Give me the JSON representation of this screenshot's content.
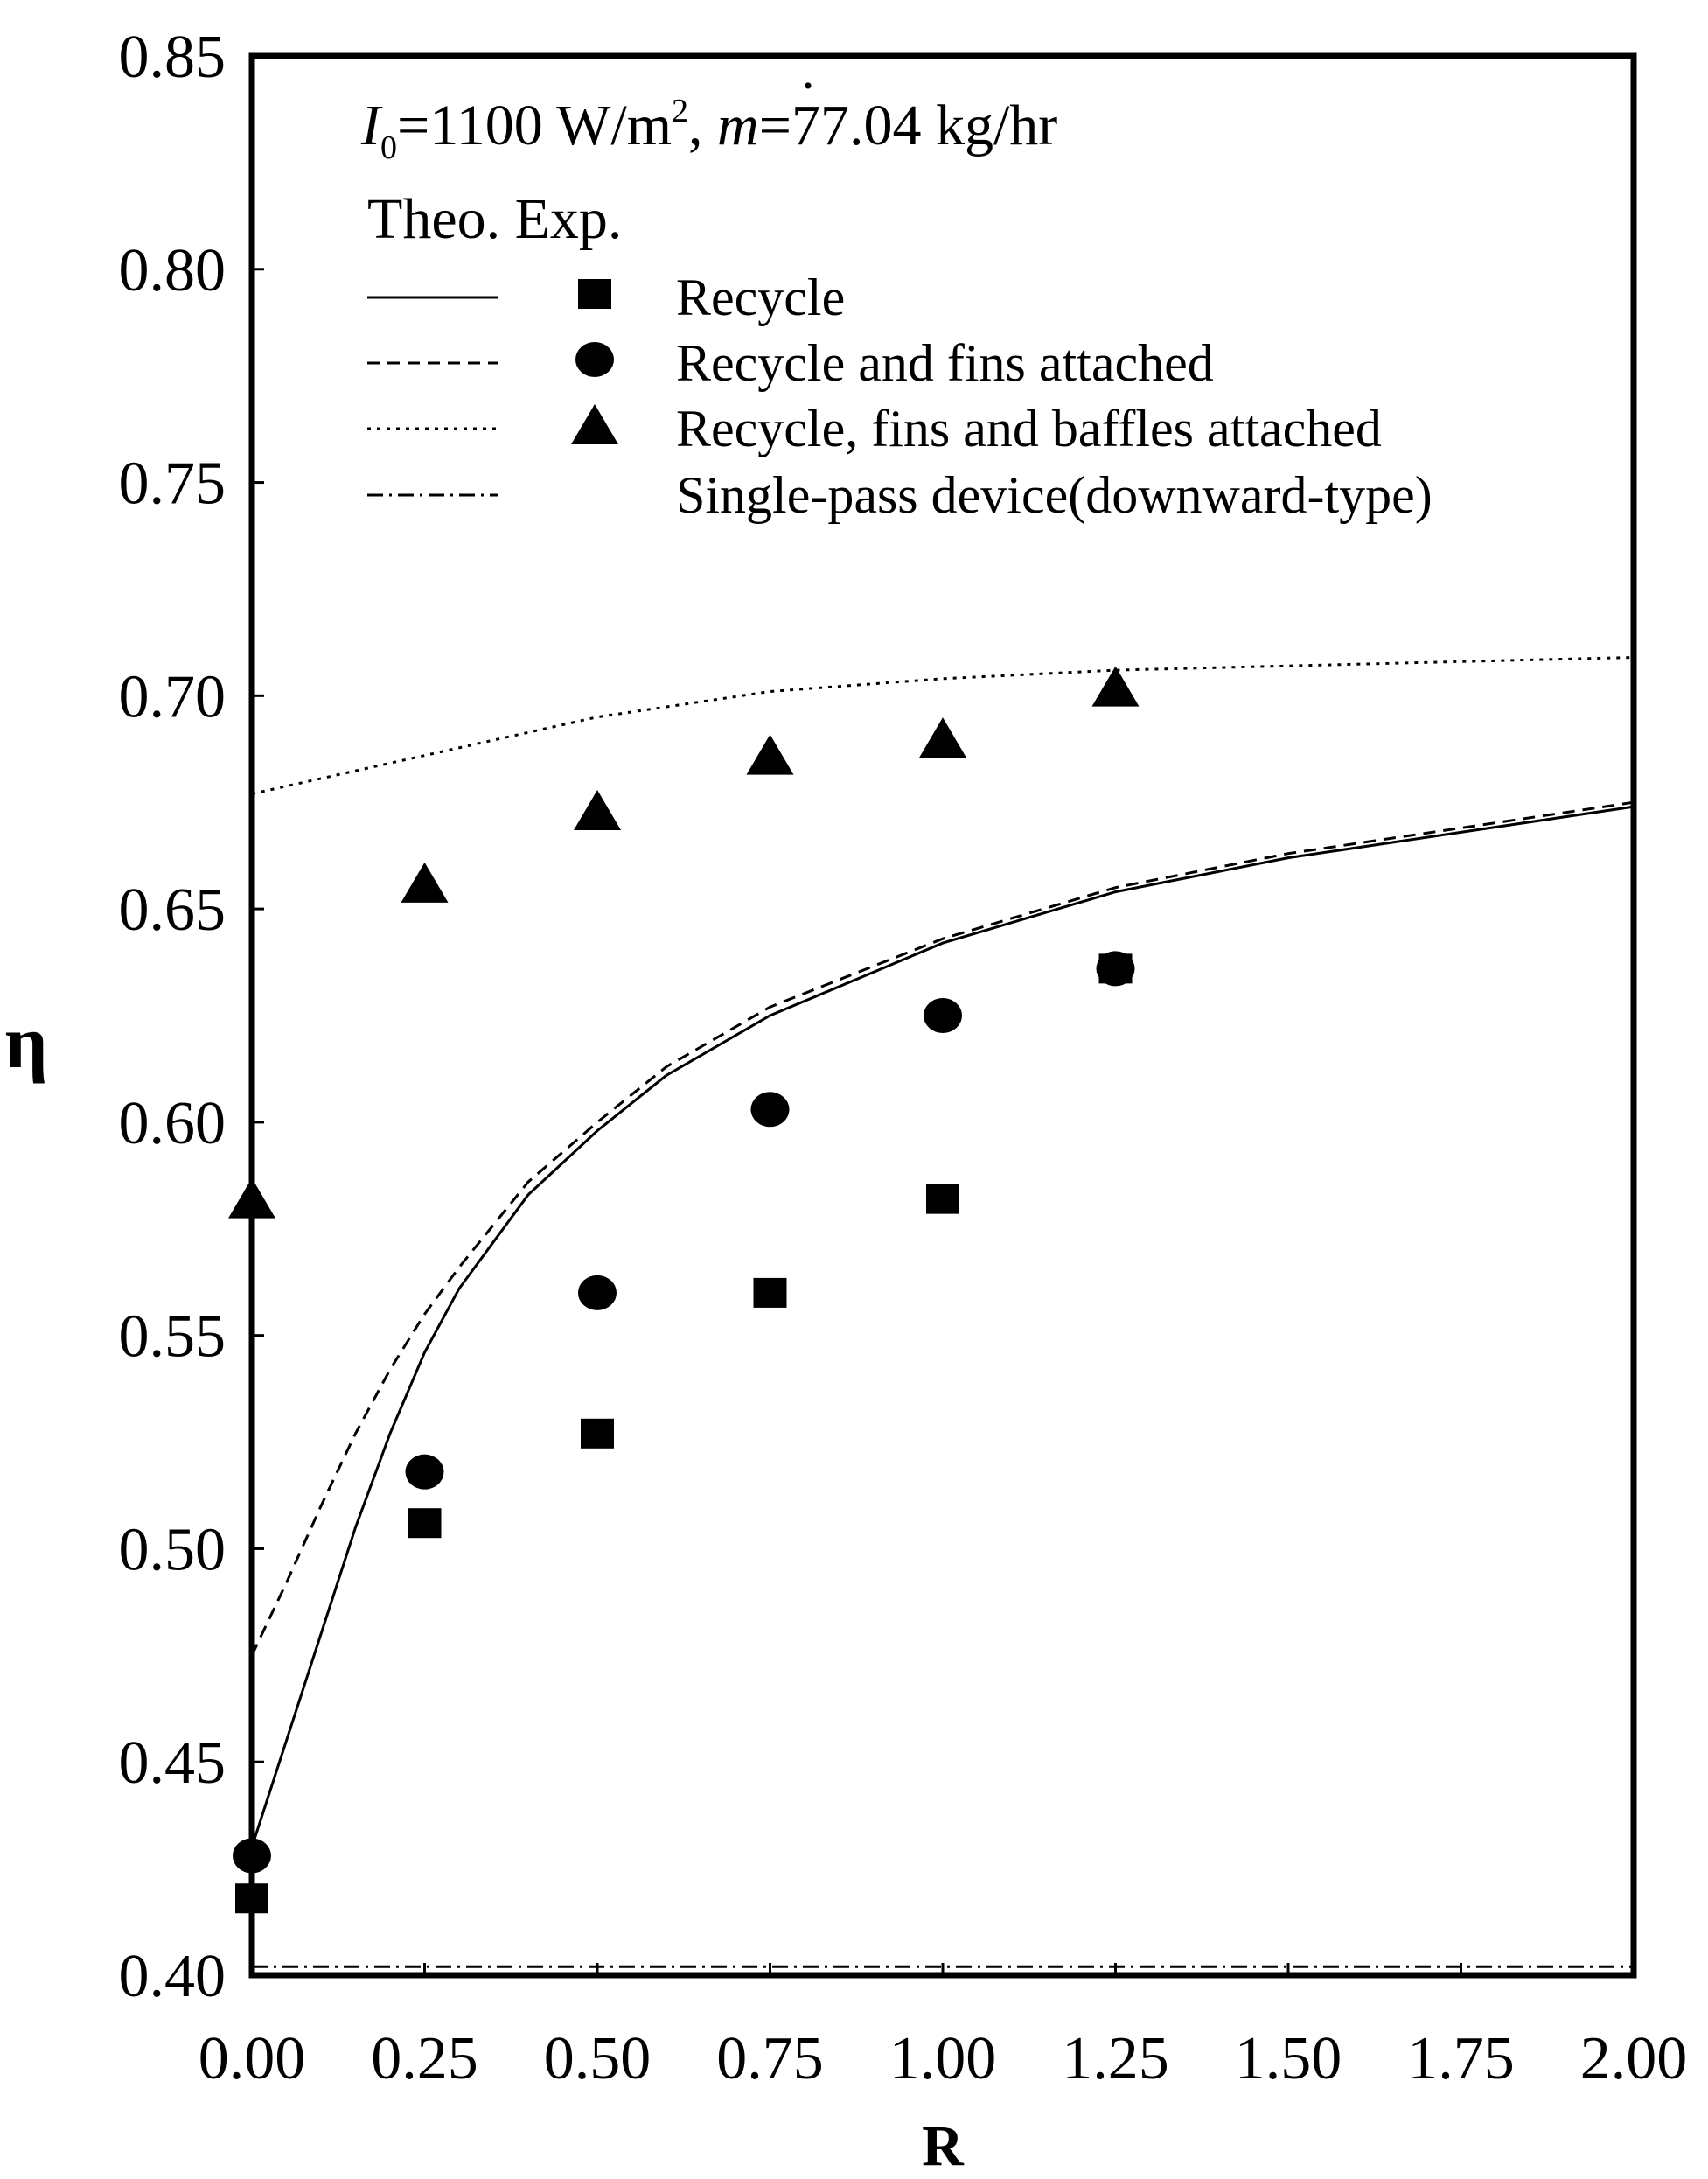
{
  "chart_data": {
    "type": "scatter+line",
    "xlabel": "R",
    "ylabel": "η",
    "xlim": [
      0,
      2
    ],
    "ylim": [
      0.4,
      0.85
    ],
    "xticks": [
      "0.00",
      "0.25",
      "0.50",
      "0.75",
      "1.00",
      "1.25",
      "1.50",
      "1.75",
      "2.00"
    ],
    "yticks": [
      "0.40",
      "0.45",
      "0.50",
      "0.55",
      "0.60",
      "0.65",
      "0.70",
      "0.75",
      "0.80",
      "0.85"
    ],
    "annotation": {
      "I": "I",
      "I_sub": "0",
      "mid1": "=1100 W/m",
      "sup": "2",
      "mid2": ", ",
      "m": "m",
      "rest": "=77.04 kg/hr"
    },
    "legend_header": "Theo. Exp.",
    "legend_position": "top-left",
    "lines": [
      {
        "name": "Recycle",
        "style": "solid",
        "points": [
          [
            0,
            0.43
          ],
          [
            0.05,
            0.455
          ],
          [
            0.1,
            0.48
          ],
          [
            0.15,
            0.505
          ],
          [
            0.2,
            0.527
          ],
          [
            0.25,
            0.546
          ],
          [
            0.3,
            0.561
          ],
          [
            0.4,
            0.583
          ],
          [
            0.5,
            0.598
          ],
          [
            0.6,
            0.611
          ],
          [
            0.75,
            0.625
          ],
          [
            1.0,
            0.642
          ],
          [
            1.25,
            0.654
          ],
          [
            1.5,
            0.662
          ],
          [
            1.75,
            0.668
          ],
          [
            2.0,
            0.674
          ]
        ]
      },
      {
        "name": "Recycle and fins attached",
        "style": "dashed",
        "points": [
          [
            0,
            0.475
          ],
          [
            0.05,
            0.492
          ],
          [
            0.1,
            0.51
          ],
          [
            0.15,
            0.527
          ],
          [
            0.2,
            0.542
          ],
          [
            0.25,
            0.555
          ],
          [
            0.3,
            0.566
          ],
          [
            0.4,
            0.586
          ],
          [
            0.5,
            0.6
          ],
          [
            0.6,
            0.613
          ],
          [
            0.75,
            0.627
          ],
          [
            1.0,
            0.643
          ],
          [
            1.25,
            0.655
          ],
          [
            1.5,
            0.663
          ],
          [
            1.75,
            0.669
          ],
          [
            2.0,
            0.675
          ]
        ]
      },
      {
        "name": "Recycle, fins and baffles attached",
        "style": "dotted",
        "points": [
          [
            0,
            0.677
          ],
          [
            0.25,
            0.686
          ],
          [
            0.5,
            0.695
          ],
          [
            0.75,
            0.701
          ],
          [
            1.0,
            0.704
          ],
          [
            1.25,
            0.706
          ],
          [
            1.5,
            0.707
          ],
          [
            1.75,
            0.708
          ],
          [
            2.0,
            0.709
          ]
        ]
      },
      {
        "name": "Single-pass device(downward-type)",
        "style": "dashdot",
        "points": [
          [
            0,
            0.402
          ],
          [
            2.0,
            0.402
          ]
        ]
      }
    ],
    "markers": [
      {
        "name": "Recycle",
        "shape": "square",
        "x": [
          0,
          0.25,
          0.5,
          0.75,
          1.0,
          1.25
        ],
        "y": [
          0.418,
          0.506,
          0.527,
          0.56,
          0.582,
          0.636
        ]
      },
      {
        "name": "Recycle and fins attached",
        "shape": "circle",
        "x": [
          0,
          0.25,
          0.5,
          0.75,
          1.0,
          1.25
        ],
        "y": [
          0.428,
          0.518,
          0.56,
          0.603,
          0.625,
          0.636
        ]
      },
      {
        "name": "Recycle, fins and baffles attached",
        "shape": "triangle",
        "x": [
          0,
          0.25,
          0.5,
          0.75,
          1.0,
          1.25
        ],
        "y": [
          0.582,
          0.656,
          0.673,
          0.686,
          0.69,
          0.702
        ]
      }
    ],
    "legend": [
      {
        "label": "Recycle",
        "line": "solid",
        "marker": "square"
      },
      {
        "label": "Recycle and fins attached",
        "line": "dashed",
        "marker": "circle"
      },
      {
        "label": "Recycle, fins and baffles attached",
        "line": "dotted",
        "marker": "triangle"
      },
      {
        "label": "Single-pass device(downward-type)",
        "line": "dashdot",
        "marker": ""
      }
    ]
  }
}
